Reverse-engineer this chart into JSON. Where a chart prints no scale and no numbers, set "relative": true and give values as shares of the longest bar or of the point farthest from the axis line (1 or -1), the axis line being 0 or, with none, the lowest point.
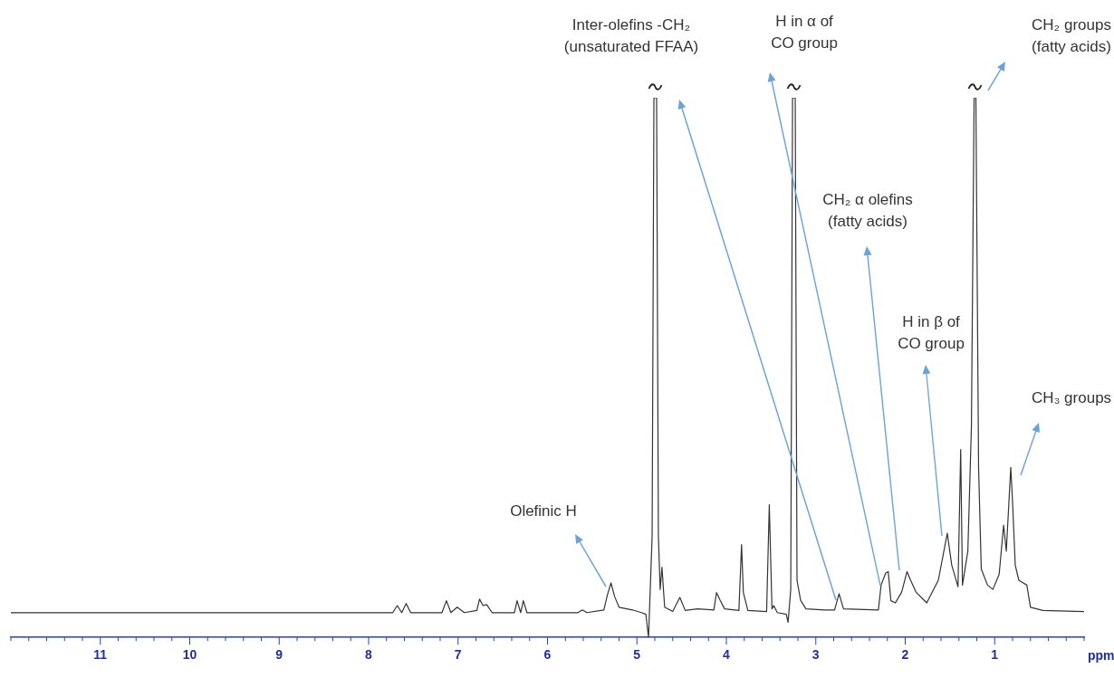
{
  "chart_data": {
    "type": "line",
    "relative": true,
    "xlabel": "ppm",
    "color": "#333333",
    "tick_labels": "x",
    "xlim": [
      12,
      0
    ],
    "xticks": [
      {
        "value": 12,
        "label": null
      },
      {
        "value": 11.8,
        "label": null
      },
      {
        "value": 11.6,
        "label": null
      },
      {
        "value": 11.4,
        "label": null
      },
      {
        "value": 11.2,
        "label": null
      },
      11,
      {
        "value": 10.8,
        "label": null
      },
      {
        "value": 10.6,
        "label": null
      },
      {
        "value": 10.4,
        "label": null
      },
      {
        "value": 10.2,
        "label": null
      },
      10,
      {
        "value": 9.8,
        "label": null
      },
      {
        "value": 9.6,
        "label": null
      },
      {
        "value": 9.4,
        "label": null
      },
      {
        "value": 9.2,
        "label": null
      },
      9,
      {
        "value": 8.8,
        "label": null
      },
      {
        "value": 8.6,
        "label": null
      },
      {
        "value": 8.4,
        "label": null
      },
      {
        "value": 8.2,
        "label": null
      },
      8,
      {
        "value": 7.8,
        "label": null
      },
      {
        "value": 7.6,
        "label": null
      },
      {
        "value": 7.4,
        "label": null
      },
      {
        "value": 7.2,
        "label": null
      },
      7,
      {
        "value": 6.8,
        "label": null
      },
      {
        "value": 6.6,
        "label": null
      },
      {
        "value": 6.4,
        "label": null
      },
      {
        "value": 6.2,
        "label": null
      },
      6,
      {
        "value": 5.8,
        "label": null
      },
      {
        "value": 5.6,
        "label": null
      },
      {
        "value": 5.4,
        "label": null
      },
      {
        "value": 5.2,
        "label": null
      },
      5,
      {
        "value": 4.8,
        "label": null
      },
      {
        "value": 4.6,
        "label": null
      },
      {
        "value": 4.4,
        "label": null
      },
      {
        "value": 4.2,
        "label": null
      },
      4,
      {
        "value": 3.8,
        "label": null
      },
      {
        "value": 3.6,
        "label": null
      },
      {
        "value": 3.4,
        "label": null
      },
      {
        "value": 3.2,
        "label": null
      },
      3,
      {
        "value": 2.8,
        "label": null
      },
      {
        "value": 2.6,
        "label": null
      },
      {
        "value": 2.4,
        "label": null
      },
      {
        "value": 2.2,
        "label": null
      },
      2,
      {
        "value": 1.8,
        "label": null
      },
      {
        "value": 1.6,
        "label": null
      },
      {
        "value": 1.4,
        "label": null
      },
      {
        "value": 1.2,
        "label": null
      },
      1,
      {
        "value": 0.8,
        "label": null
      },
      {
        "value": 0.6,
        "label": null
      },
      {
        "value": 0.4,
        "label": null
      },
      {
        "value": 0.2,
        "label": null
      },
      {
        "value": 0,
        "label": null
      }
    ],
    "x": [
      12.0,
      9.1,
      7.73,
      7.68,
      7.63,
      7.58,
      7.53,
      7.18,
      7.13,
      7.08,
      7.01,
      6.93,
      6.79,
      6.76,
      6.72,
      6.68,
      6.62,
      6.37,
      6.34,
      6.3,
      6.27,
      6.23,
      5.66,
      5.61,
      5.56,
      5.37,
      5.33,
      5.29,
      5.25,
      5.2,
      5.05,
      4.95,
      4.9,
      4.87,
      4.83,
      4.81,
      4.78,
      4.76,
      4.74,
      4.72,
      4.69,
      4.6,
      4.52,
      4.46,
      4.32,
      4.14,
      4.11,
      4.07,
      4.02,
      3.86,
      3.83,
      3.81,
      3.76,
      3.55,
      3.52,
      3.49,
      3.47,
      3.43,
      3.33,
      3.31,
      3.28,
      3.26,
      3.23,
      3.21,
      3.17,
      3.11,
      2.9,
      2.79,
      2.74,
      2.69,
      2.3,
      2.27,
      2.22,
      2.19,
      2.16,
      2.11,
      2.04,
      1.98,
      1.94,
      1.88,
      1.76,
      1.63,
      1.53,
      1.48,
      1.41,
      1.38,
      1.36,
      1.3,
      1.26,
      1.23,
      1.21,
      1.18,
      1.15,
      1.08,
      1.02,
      0.95,
      0.9,
      0.87,
      0.82,
      0.8,
      0.77,
      0.73,
      0.68,
      0.64,
      0.6,
      0.46,
      0.0
    ],
    "values": [
      0.046,
      0.046,
      0.046,
      0.059,
      0.046,
      0.063,
      0.046,
      0.046,
      0.068,
      0.046,
      0.056,
      0.046,
      0.05,
      0.071,
      0.059,
      0.061,
      0.046,
      0.046,
      0.068,
      0.046,
      0.068,
      0.046,
      0.046,
      0.051,
      0.046,
      0.051,
      0.079,
      0.101,
      0.076,
      0.056,
      0.051,
      0.046,
      0.043,
      0.0,
      0.188,
      1,
      1,
      0.188,
      0.089,
      0.13,
      0.056,
      0.048,
      0.074,
      0.05,
      0.053,
      0.051,
      0.083,
      0.069,
      0.053,
      0.05,
      0.172,
      0.083,
      0.05,
      0.048,
      0.246,
      0.053,
      0.059,
      0.046,
      0.043,
      0.028,
      0.089,
      1,
      1,
      0.106,
      0.069,
      0.053,
      0.051,
      0.051,
      0.081,
      0.053,
      0.051,
      0.097,
      0.119,
      0.122,
      0.068,
      0.064,
      0.084,
      0.122,
      0.106,
      0.084,
      0.064,
      0.106,
      0.193,
      0.134,
      0.094,
      0.348,
      0.097,
      0.16,
      0.391,
      1,
      1,
      0.315,
      0.127,
      0.097,
      0.089,
      0.117,
      0.208,
      0.16,
      0.315,
      0.251,
      0.134,
      0.106,
      0.101,
      0.097,
      0.056,
      0.05,
      0.048
    ],
    "annotations": [
      "Olefinic H",
      "Inter-olefins -CH₂\n(unsaturated FFAA)",
      "H in α of\nCO group",
      "CH₂ α olefins\n(fatty acids)",
      "H in β of\nCO group",
      "CH₃ groups",
      "CH₂ groups\n(fatty acids)"
    ]
  }
}
